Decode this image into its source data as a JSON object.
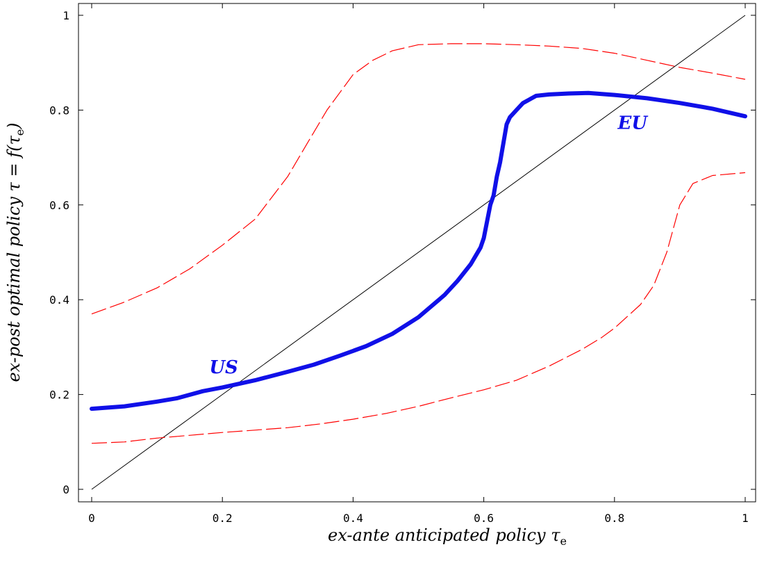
{
  "chart_data": {
    "type": "line",
    "title": "",
    "xlabel": "ex-ante anticipated policy τ",
    "xlabel_sub": "e",
    "ylabel": "ex-post optimal policy τ = f(τ",
    "ylabel_sub": "e",
    "ylabel_close": ")",
    "xlim": [
      0,
      1
    ],
    "ylim": [
      0,
      1
    ],
    "xticks": [
      0,
      0.2,
      0.4,
      0.6,
      0.8,
      1
    ],
    "yticks": [
      0,
      0.2,
      0.4,
      0.6,
      0.8,
      1
    ],
    "xtick_labels": [
      "0",
      "0.2",
      "0.4",
      "0.6",
      "0.8",
      "1"
    ],
    "ytick_labels": [
      "0",
      "0.2",
      "0.4",
      "0.6",
      "0.8",
      "1"
    ],
    "grid": false,
    "annotations": [
      {
        "text": "US",
        "x": 0.18,
        "y": 0.245
      },
      {
        "text": "EU",
        "x": 0.805,
        "y": 0.76
      }
    ],
    "series": [
      {
        "style": "thin-solid",
        "color": "#000000",
        "x": [
          0,
          1
        ],
        "y": [
          0,
          1
        ]
      },
      {
        "style": "thick-solid",
        "color": "#1010e8",
        "x": [
          0,
          0.05,
          0.1,
          0.13,
          0.17,
          0.2,
          0.25,
          0.3,
          0.34,
          0.38,
          0.42,
          0.46,
          0.5,
          0.54,
          0.56,
          0.58,
          0.595,
          0.6,
          0.605,
          0.61,
          0.615,
          0.62,
          0.625,
          0.63,
          0.635,
          0.64,
          0.65,
          0.66,
          0.68,
          0.7,
          0.73,
          0.76,
          0.8,
          0.85,
          0.9,
          0.95,
          1.0
        ],
        "y": [
          0.17,
          0.175,
          0.185,
          0.192,
          0.207,
          0.215,
          0.23,
          0.248,
          0.263,
          0.282,
          0.302,
          0.328,
          0.363,
          0.41,
          0.44,
          0.475,
          0.51,
          0.53,
          0.565,
          0.6,
          0.62,
          0.66,
          0.69,
          0.73,
          0.77,
          0.785,
          0.8,
          0.815,
          0.83,
          0.833,
          0.835,
          0.836,
          0.832,
          0.825,
          0.815,
          0.803,
          0.787
        ]
      },
      {
        "style": "dashed",
        "color": "#ff0000",
        "x": [
          0,
          0.05,
          0.1,
          0.15,
          0.2,
          0.25,
          0.3,
          0.33,
          0.36,
          0.4,
          0.43,
          0.46,
          0.5,
          0.55,
          0.6,
          0.65,
          0.7,
          0.75,
          0.8,
          0.85,
          0.9,
          0.95,
          1.0
        ],
        "y": [
          0.37,
          0.395,
          0.425,
          0.465,
          0.515,
          0.57,
          0.66,
          0.73,
          0.8,
          0.875,
          0.905,
          0.925,
          0.938,
          0.94,
          0.94,
          0.938,
          0.935,
          0.93,
          0.92,
          0.905,
          0.89,
          0.878,
          0.865
        ]
      },
      {
        "style": "dashed",
        "color": "#ff0000",
        "x": [
          0,
          0.05,
          0.1,
          0.15,
          0.2,
          0.25,
          0.3,
          0.35,
          0.4,
          0.45,
          0.5,
          0.55,
          0.6,
          0.65,
          0.7,
          0.75,
          0.78,
          0.8,
          0.82,
          0.84,
          0.86,
          0.88,
          0.9,
          0.92,
          0.95,
          1.0
        ],
        "y": [
          0.097,
          0.1,
          0.108,
          0.114,
          0.12,
          0.125,
          0.13,
          0.138,
          0.148,
          0.16,
          0.175,
          0.193,
          0.21,
          0.23,
          0.26,
          0.295,
          0.32,
          0.34,
          0.365,
          0.39,
          0.43,
          0.5,
          0.6,
          0.645,
          0.662,
          0.668
        ]
      }
    ]
  }
}
